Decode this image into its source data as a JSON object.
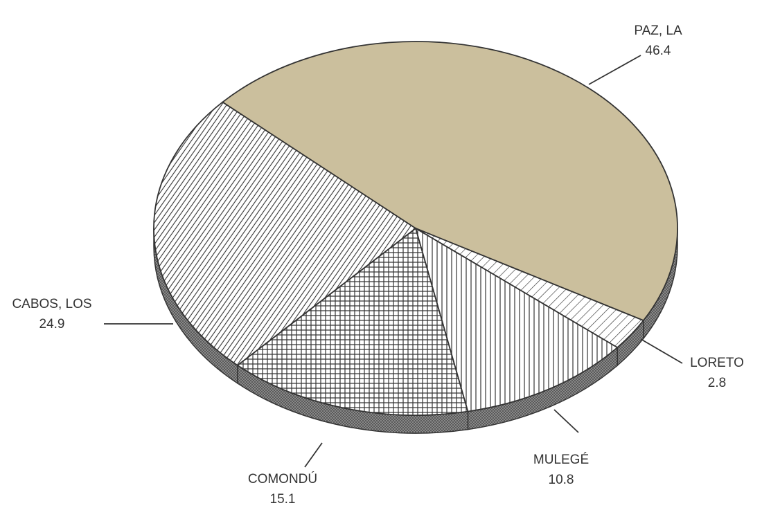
{
  "chart_data": {
    "type": "pie",
    "categories": [
      "PAZ, LA",
      "LORETO",
      "MULEGÉ",
      "COMONDÚ",
      "CABOS, LOS"
    ],
    "values": [
      46.4,
      2.8,
      10.8,
      15.1,
      24.9
    ],
    "colors": [
      "#cbbf9d",
      "#ffffff",
      "#ffffff",
      "#ffffff",
      "#ffffff"
    ]
  }
}
